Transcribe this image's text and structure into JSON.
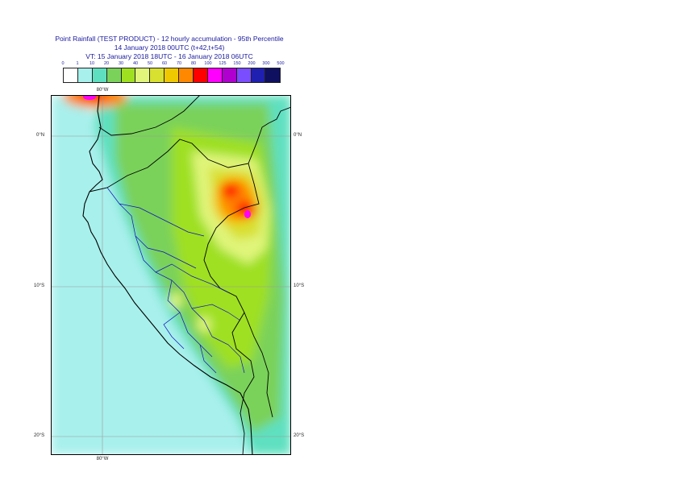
{
  "header": {
    "title": "Point Rainfall (TEST PRODUCT) - 12 hourly accumulation - 95th Percentile",
    "run": "14 January 2018 00UTC (t+42,t+54)",
    "valid": "VT: 15 January 2018 18UTC - 16 January 2018 06UTC"
  },
  "legend": {
    "ticks": [
      "0",
      "1",
      "10",
      "20",
      "30",
      "40",
      "50",
      "60",
      "70",
      "80",
      "100",
      "125",
      "150",
      "200",
      "300",
      "500"
    ],
    "colors": [
      "#ffffff",
      "#a8f0ec",
      "#5ee0c0",
      "#7ad25a",
      "#9fe020",
      "#e0f57a",
      "#d8e030",
      "#f0c800",
      "#ff8800",
      "#ff0000",
      "#ff00ff",
      "#b000d0",
      "#7a4dff",
      "#2020b0",
      "#101060"
    ]
  },
  "map": {
    "lat_labels": [
      "0°N",
      "10°S",
      "20°S"
    ],
    "lon_label": "80°W"
  }
}
